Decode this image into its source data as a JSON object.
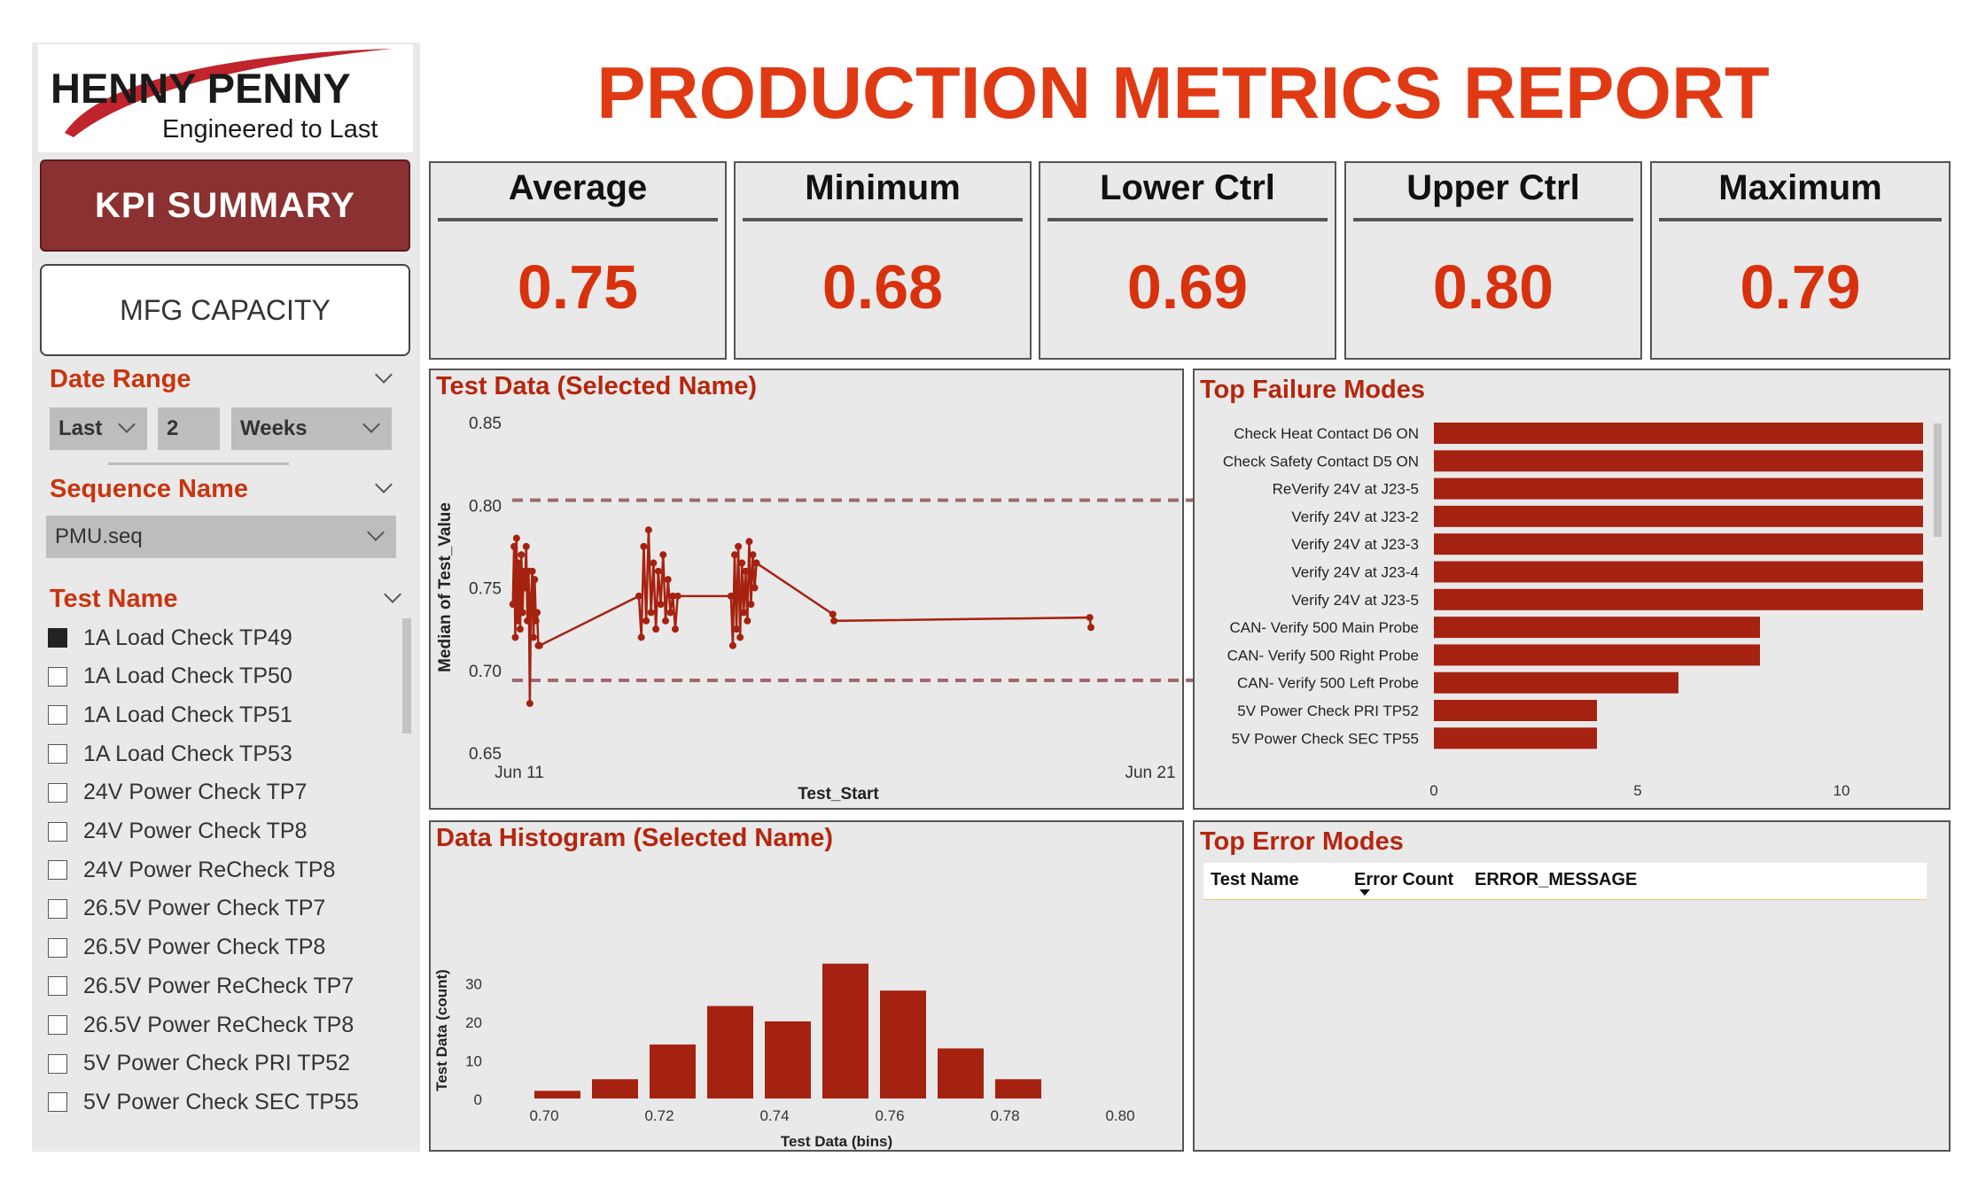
{
  "logo": {
    "brand": "HENNY PENNY",
    "tagline": "Engineered to Last"
  },
  "report_title": "PRODUCTION METRICS REPORT",
  "nav": {
    "kpi_summary": "KPI SUMMARY",
    "mfg_capacity": "MFG CAPACITY"
  },
  "filters": {
    "date_range": {
      "title": "Date Range",
      "relative": "Last",
      "count": "2",
      "unit": "Weeks"
    },
    "sequence_name": {
      "title": "Sequence Name",
      "selected": "PMU.seq"
    },
    "test_name": {
      "title": "Test Name",
      "items": [
        {
          "label": "1A Load Check TP49",
          "checked": true
        },
        {
          "label": "1A Load Check TP50",
          "checked": false
        },
        {
          "label": "1A Load Check TP51",
          "checked": false
        },
        {
          "label": "1A Load Check TP53",
          "checked": false
        },
        {
          "label": "24V Power Check TP7",
          "checked": false
        },
        {
          "label": "24V Power Check TP8",
          "checked": false
        },
        {
          "label": "24V Power ReCheck TP8",
          "checked": false
        },
        {
          "label": "26.5V Power Check TP7",
          "checked": false
        },
        {
          "label": "26.5V Power Check TP8",
          "checked": false
        },
        {
          "label": "26.5V Power ReCheck TP7",
          "checked": false
        },
        {
          "label": "26.5V Power ReCheck TP8",
          "checked": false
        },
        {
          "label": "5V Power Check PRI TP52",
          "checked": false
        },
        {
          "label": "5V Power Check SEC TP55",
          "checked": false
        }
      ]
    }
  },
  "kpis": [
    {
      "label": "Average",
      "value": "0.75"
    },
    {
      "label": "Minimum",
      "value": "0.68"
    },
    {
      "label": "Lower Ctrl",
      "value": "0.69"
    },
    {
      "label": "Upper Ctrl",
      "value": "0.80"
    },
    {
      "label": "Maximum",
      "value": "0.79"
    }
  ],
  "colors": {
    "accent": "#d8310d",
    "bar": "#a62210",
    "nav_active": "#8b3131",
    "control_line": "#a06a6a",
    "panel_bg": "#e9e9e9"
  },
  "chart_data": [
    {
      "id": "test_data",
      "type": "line",
      "title": "Test Data (Selected Name)",
      "xlabel": "Test_Start",
      "ylabel": "Median of Test_Value",
      "x_ticks": [
        "Jun 11",
        "Jun 21"
      ],
      "y_ticks": [
        "0.65",
        "0.70",
        "0.75",
        "0.80",
        "0.85"
      ],
      "ylim": [
        0.65,
        0.85
      ],
      "xlim": [
        "Jun 11",
        "Jun 21"
      ],
      "control_lines": [
        0.803,
        0.694
      ],
      "series": [
        {
          "x": [
            "Jun 11 01:00",
            "Jun 11 01:30",
            "Jun 11 02:00",
            "Jun 11 02:30",
            "Jun 11 03:00",
            "Jun 11 03:30",
            "Jun 11 04:00",
            "Jun 11 04:30",
            "Jun 11 05:00",
            "Jun 11 05:30",
            "Jun 11 06:00",
            "Jun 11 06:30",
            "Jun 11 07:00",
            "Jun 11 07:30",
            "Jun 11 08:00",
            "Jun 11 08:30",
            "Jun 11 09:00",
            "Jun 11 09:30",
            "Jun 11 10:00",
            "Jun 11 10:30",
            "Jun 11 11:00",
            "Jun 11 11:30",
            "Jun 11 12:00",
            "Jun 13 05:00",
            "Jun 13 06:00",
            "Jun 13 07:00",
            "Jun 13 08:00",
            "Jun 13 09:00",
            "Jun 13 10:00",
            "Jun 13 11:00",
            "Jun 13 12:00",
            "Jun 13 13:00",
            "Jun 13 14:00",
            "Jun 13 15:00",
            "Jun 13 16:00",
            "Jun 13 17:00",
            "Jun 13 18:00",
            "Jun 13 19:00",
            "Jun 13 20:00",
            "Jun 13 21:00",
            "Jun 14 19:00",
            "Jun 14 19:45",
            "Jun 14 20:30",
            "Jun 14 21:15",
            "Jun 14 22:00",
            "Jun 14 22:45",
            "Jun 14 23:30",
            "Jun 15 00:15",
            "Jun 15 01:00",
            "Jun 15 01:45",
            "Jun 15 02:30",
            "Jun 15 03:15",
            "Jun 15 04:00",
            "Jun 15 04:45",
            "Jun 15 05:30",
            "Jun 16 13:00",
            "Jun 16 13:30",
            "Jun 20 23:00",
            "Jun 20 23:30"
          ],
          "y": [
            0.74,
            0.775,
            0.72,
            0.78,
            0.73,
            0.765,
            0.725,
            0.77,
            0.735,
            0.76,
            0.75,
            0.775,
            0.73,
            0.76,
            0.68,
            0.745,
            0.76,
            0.72,
            0.755,
            0.73,
            0.735,
            0.715,
            0.715,
            0.745,
            0.72,
            0.775,
            0.73,
            0.785,
            0.735,
            0.765,
            0.725,
            0.76,
            0.74,
            0.77,
            0.73,
            0.755,
            0.735,
            0.745,
            0.725,
            0.745,
            0.745,
            0.715,
            0.77,
            0.725,
            0.775,
            0.72,
            0.765,
            0.735,
            0.76,
            0.73,
            0.778,
            0.74,
            0.77,
            0.75,
            0.765,
            0.734,
            0.73,
            0.732,
            0.726
          ]
        }
      ]
    },
    {
      "id": "failure_modes",
      "type": "bar",
      "orientation": "horizontal",
      "title": "Top Failure Modes",
      "categories": [
        "Check Heat Contact D6 ON",
        "Check Safety Contact D5 ON",
        "ReVerify 24V at J23-5",
        "Verify 24V at J23-2",
        "Verify 24V at J23-3",
        "Verify 24V at J23-4",
        "Verify 24V at J23-5",
        "CAN- Verify 500 Main Probe",
        "CAN- Verify 500 Right Probe",
        "CAN- Verify 500 Left Probe",
        "5V Power Check PRI TP52",
        "5V Power Check SEC TP55"
      ],
      "values": [
        12,
        12,
        12,
        12,
        12,
        12,
        12,
        8,
        8,
        6,
        4,
        4
      ],
      "x_ticks": [
        "0",
        "5",
        "10"
      ],
      "xlim": [
        0,
        12
      ]
    },
    {
      "id": "histogram",
      "type": "bar",
      "title": "Data Histogram (Selected Name)",
      "xlabel": "Test Data (bins)",
      "ylabel": "Test Data (count)",
      "categories": [
        0.7,
        0.71,
        0.72,
        0.73,
        0.74,
        0.75,
        0.76,
        0.77,
        0.78
      ],
      "values": [
        2,
        5,
        14,
        24,
        20,
        35,
        28,
        13,
        5
      ],
      "x_ticks": [
        "0.70",
        "0.72",
        "0.74",
        "0.76",
        "0.78",
        "0.80"
      ],
      "y_ticks": [
        "0",
        "10",
        "20",
        "30"
      ],
      "ylim": [
        0,
        37
      ]
    }
  ],
  "error_table": {
    "title": "Top Error Modes",
    "columns": [
      "Test Name",
      "Error Count",
      "ERROR_MESSAGE"
    ],
    "rows": []
  }
}
